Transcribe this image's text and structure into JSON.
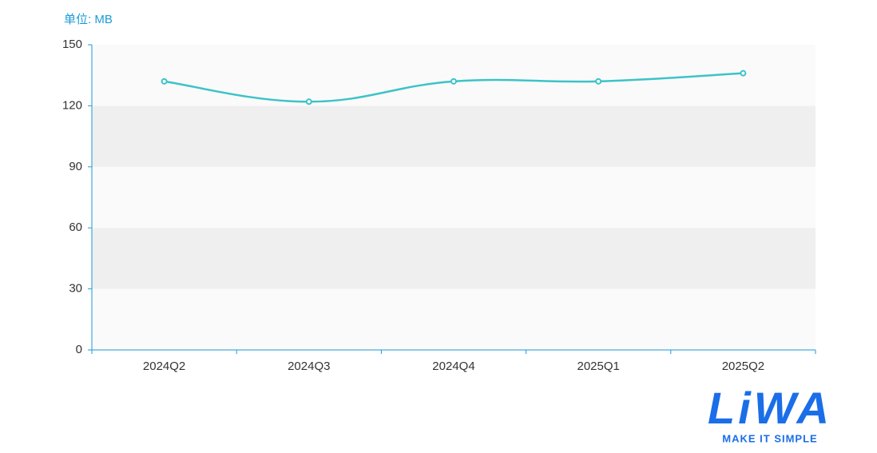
{
  "chart_data": {
    "type": "line",
    "unit_label": "单位: MB",
    "categories": [
      "2024Q2",
      "2024Q3",
      "2024Q4",
      "2025Q1",
      "2025Q2"
    ],
    "series": [
      {
        "name": "MB",
        "color": "#3cc3c8",
        "values": [
          132,
          122,
          132,
          132,
          136
        ]
      }
    ],
    "ylim": [
      0,
      150
    ],
    "yticks": [
      0,
      30,
      60,
      90,
      120,
      150
    ],
    "smooth": true,
    "axis_color": "#1a9bd7",
    "split_area_colors": [
      "#fafafa",
      "#efefef"
    ]
  },
  "logo": {
    "text": "LiWA",
    "tagline": "MAKE IT SIMPLE",
    "color": "#1a6ee8"
  }
}
